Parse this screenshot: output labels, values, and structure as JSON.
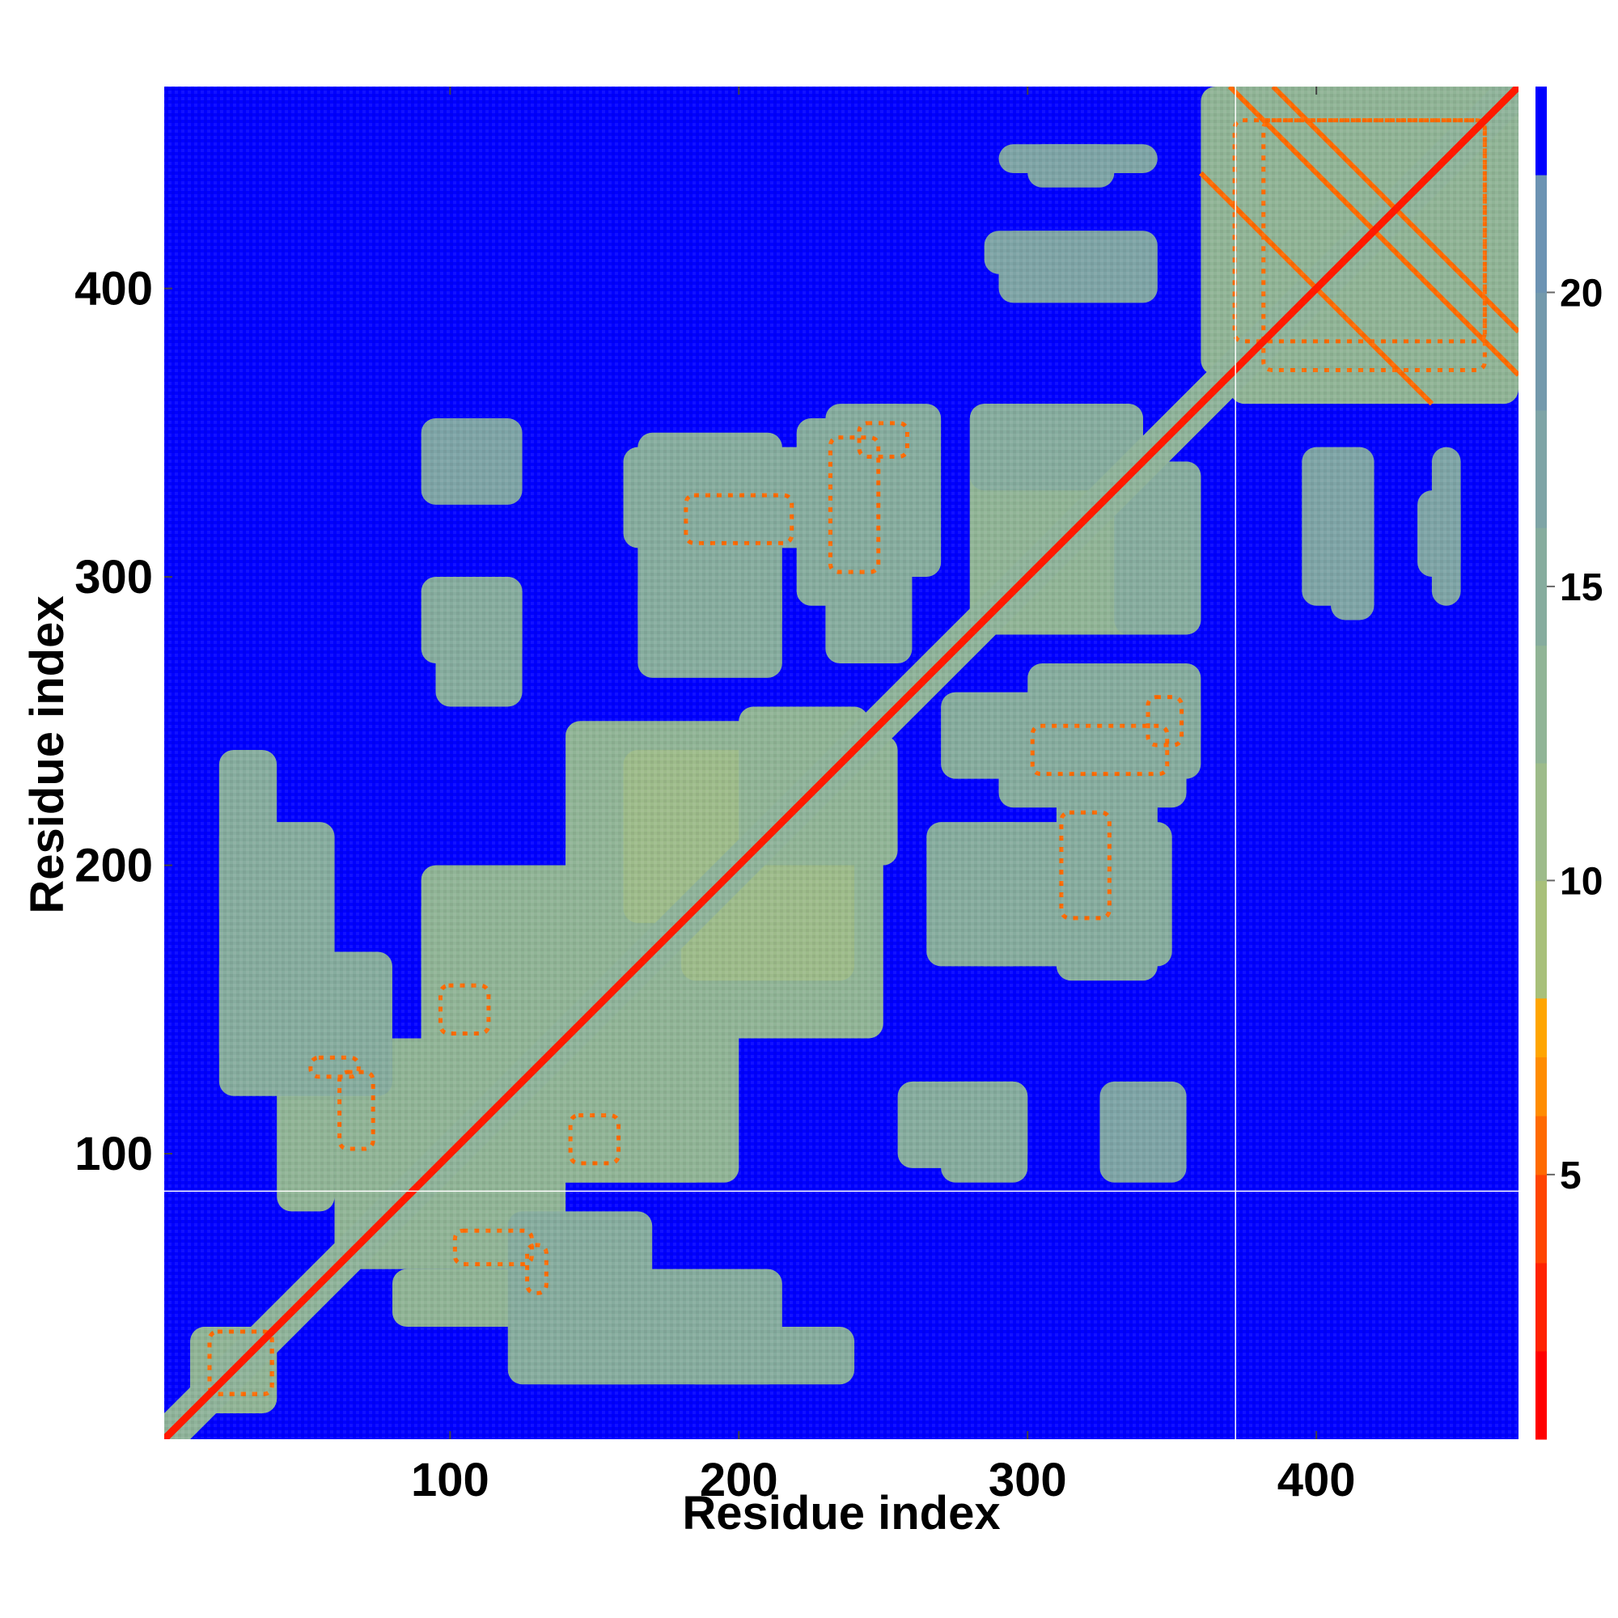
{
  "chart_data": {
    "type": "heatmap",
    "description_of_values": "Residue-residue distance map (symmetric contact map); low values red/orange near diagonal and in contact blobs, high values (>22) saturated blue background",
    "title": "",
    "xlabel": "Residue index",
    "ylabel": "Residue index",
    "xlim": [
      1,
      470
    ],
    "ylim": [
      1,
      470
    ],
    "x_ticks": [
      100,
      200,
      300,
      400
    ],
    "y_ticks": [
      100,
      200,
      300,
      400
    ],
    "colorbar": {
      "ticks": [
        5,
        10,
        15,
        20
      ],
      "range": [
        0.5,
        23.5
      ],
      "colors": [
        {
          "from": 0.5,
          "to": 2.0,
          "color": "#ff0000"
        },
        {
          "from": 2.0,
          "to": 3.5,
          "color": "#ff2200"
        },
        {
          "from": 3.5,
          "to": 5.0,
          "color": "#ff4400"
        },
        {
          "from": 5.0,
          "to": 6.0,
          "color": "#ff6a00"
        },
        {
          "from": 6.0,
          "to": 7.0,
          "color": "#ff8c00"
        },
        {
          "from": 7.0,
          "to": 8.0,
          "color": "#ffa500"
        },
        {
          "from": 8.0,
          "to": 10.0,
          "color": "#a8c07a"
        },
        {
          "from": 10.0,
          "to": 12.0,
          "color": "#9dbb8a"
        },
        {
          "from": 12.0,
          "to": 14.0,
          "color": "#90b496"
        },
        {
          "from": 14.0,
          "to": 16.0,
          "color": "#86ac9e"
        },
        {
          "from": 16.0,
          "to": 18.0,
          "color": "#7ea4a6"
        },
        {
          "from": 18.0,
          "to": 20.0,
          "color": "#7399ac"
        },
        {
          "from": 20.0,
          "to": 22.0,
          "color": "#6c93b3"
        },
        {
          "from": 22.0,
          "to": 23.5,
          "color": "#0000ff"
        }
      ]
    },
    "background_color": "#0000ff",
    "contact_color": "#8fb39a",
    "close_contact_color": "#ff6a00",
    "diagonal_color": "#ff1a00",
    "divider_lines": {
      "vertical_residue": 372,
      "horizontal_residue": 87,
      "color": "#ffffff"
    },
    "contact_regions": [
      {
        "x": [
          10,
          40
        ],
        "y": [
          10,
          40
        ],
        "value": 12
      },
      {
        "x": [
          20,
          60
        ],
        "y": [
          130,
          215
        ],
        "value": 14
      },
      {
        "x": [
          40,
          60
        ],
        "y": [
          80,
          140
        ],
        "value": 13
      },
      {
        "x": [
          60,
          120
        ],
        "y": [
          60,
          140
        ],
        "value": 13
      },
      {
        "x": [
          90,
          130
        ],
        "y": [
          80,
          190
        ],
        "value": 13
      },
      {
        "x": [
          90,
          125
        ],
        "y": [
          270,
          300
        ],
        "value": 15
      },
      {
        "x": [
          90,
          125
        ],
        "y": [
          325,
          355
        ],
        "value": 16
      },
      {
        "x": [
          120,
          170
        ],
        "y": [
          20,
          80
        ],
        "value": 14
      },
      {
        "x": [
          130,
          200
        ],
        "y": [
          90,
          150
        ],
        "value": 12
      },
      {
        "x": [
          140,
          210
        ],
        "y": [
          140,
          250
        ],
        "value": 12
      },
      {
        "x": [
          160,
          215
        ],
        "y": [
          180,
          240
        ],
        "value": 11
      },
      {
        "x": [
          165,
          215
        ],
        "y": [
          280,
          350
        ],
        "value": 15
      },
      {
        "x": [
          180,
          240
        ],
        "y": [
          20,
          40
        ],
        "value": 15
      },
      {
        "x": [
          200,
          245
        ],
        "y": [
          200,
          255
        ],
        "value": 12
      },
      {
        "x": [
          220,
          255
        ],
        "y": [
          290,
          355
        ],
        "value": 15
      },
      {
        "x": [
          240,
          270
        ],
        "y": [
          300,
          360
        ],
        "value": 15
      },
      {
        "x": [
          255,
          300
        ],
        "y": [
          95,
          125
        ],
        "value": 15
      },
      {
        "x": [
          265,
          300
        ],
        "y": [
          165,
          215
        ],
        "value": 15
      },
      {
        "x": [
          270,
          360
        ],
        "y": [
          230,
          260
        ],
        "value": 14
      },
      {
        "x": [
          280,
          340
        ],
        "y": [
          280,
          360
        ],
        "value": 13
      },
      {
        "x": [
          310,
          345
        ],
        "y": [
          160,
          225
        ],
        "value": 15
      },
      {
        "x": [
          330,
          360
        ],
        "y": [
          280,
          340
        ],
        "value": 14
      },
      {
        "x": [
          330,
          350
        ],
        "y": [
          100,
          120
        ],
        "value": 16
      },
      {
        "x": [
          290,
          345
        ],
        "y": [
          395,
          420
        ],
        "value": 16
      },
      {
        "x": [
          300,
          330
        ],
        "y": [
          435,
          450
        ],
        "value": 16
      },
      {
        "x": [
          370,
          470
        ],
        "y": [
          360,
          470
        ],
        "value": 12
      },
      {
        "x": [
          405,
          420
        ],
        "y": [
          285,
          330
        ],
        "value": 16
      },
      {
        "x": [
          440,
          450
        ],
        "y": [
          290,
          345
        ],
        "value": 16
      }
    ],
    "strong_contacts": [
      {
        "x": [
          15,
          40
        ],
        "y": [
          15,
          40
        ]
      },
      {
        "x": [
          60,
          75
        ],
        "y": [
          100,
          130
        ]
      },
      {
        "x": [
          95,
          115
        ],
        "y": [
          140,
          160
        ]
      },
      {
        "x": [
          125,
          135
        ],
        "y": [
          50,
          70
        ]
      },
      {
        "x": [
          230,
          250
        ],
        "y": [
          300,
          350
        ]
      },
      {
        "x": [
          310,
          330
        ],
        "y": [
          180,
          220
        ]
      },
      {
        "x": [
          340,
          355
        ],
        "y": [
          240,
          260
        ]
      },
      {
        "x": [
          380,
          460
        ],
        "y": [
          370,
          460
        ]
      }
    ],
    "antidiagonal_bands": [
      {
        "x0": 370,
        "y0": 470,
        "x1": 470,
        "y1": 370
      },
      {
        "x0": 360,
        "y0": 440,
        "x1": 440,
        "y1": 360
      },
      {
        "x0": 385,
        "y0": 470,
        "x1": 470,
        "y1": 385
      }
    ]
  }
}
